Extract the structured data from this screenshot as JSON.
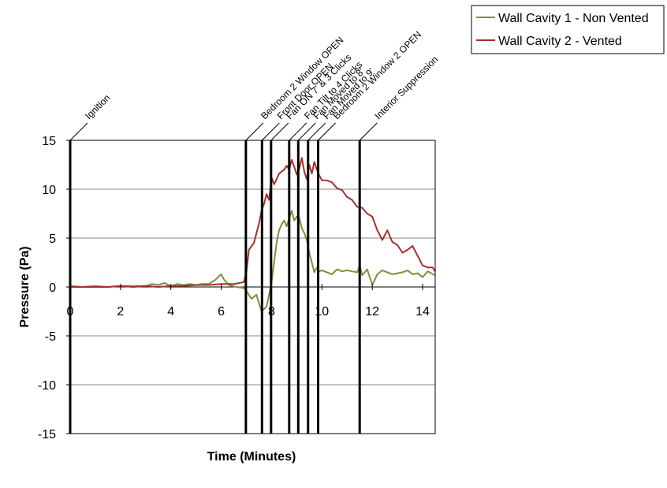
{
  "chart_data": {
    "type": "line",
    "title": "",
    "xlabel": "Time (Minutes)",
    "ylabel": "Pressure (Pa)",
    "xlim": [
      0,
      14.5
    ],
    "ylim": [
      -15,
      15
    ],
    "x_ticks": [
      0,
      2,
      4,
      6,
      8,
      10,
      12,
      14
    ],
    "y_ticks": [
      15,
      10,
      5,
      0,
      -5,
      -10,
      -15
    ],
    "grid": "horizontal",
    "legend_position": "top-right",
    "series": [
      {
        "name": "Wall Cavity 1 - Non Vented",
        "color": "#77933c",
        "x": [
          0,
          0.5,
          1,
          1.5,
          2,
          2.5,
          3,
          3.25,
          3.5,
          3.75,
          4,
          4.25,
          4.5,
          4.75,
          5,
          5.25,
          5.5,
          5.75,
          6,
          6.1,
          6.3,
          6.6,
          6.9,
          7,
          7.2,
          7.4,
          7.6,
          7.8,
          7.9,
          8.0,
          8.1,
          8.2,
          8.3,
          8.4,
          8.5,
          8.6,
          8.7,
          8.8,
          8.9,
          9.0,
          9.1,
          9.2,
          9.3,
          9.4,
          9.5,
          9.6,
          9.7,
          9.8,
          9.9,
          10.0,
          10.2,
          10.4,
          10.6,
          10.8,
          11.0,
          11.2,
          11.4,
          11.5,
          11.6,
          11.8,
          12.0,
          12.2,
          12.4,
          12.6,
          12.8,
          13.0,
          13.2,
          13.4,
          13.6,
          13.8,
          14.0,
          14.2,
          14.5
        ],
        "y": [
          0.1,
          0.0,
          0.1,
          0.0,
          0.1,
          0.1,
          0.1,
          0.3,
          0.2,
          0.4,
          0.1,
          0.3,
          0.2,
          0.3,
          0.2,
          0.3,
          0.3,
          0.7,
          1.3,
          0.8,
          0.2,
          0.0,
          -0.1,
          -0.4,
          -1.2,
          -0.8,
          -2.5,
          -2.0,
          -0.8,
          0.5,
          2.5,
          4.5,
          5.8,
          6.4,
          6.8,
          6.2,
          7.0,
          7.8,
          6.8,
          7.2,
          7.1,
          6.0,
          5.5,
          4.8,
          3.5,
          2.5,
          1.5,
          2.0,
          1.6,
          1.7,
          1.5,
          1.3,
          1.8,
          1.6,
          1.7,
          1.6,
          1.5,
          2.2,
          1.2,
          1.8,
          0.2,
          1.3,
          1.7,
          1.5,
          1.3,
          1.4,
          1.5,
          1.7,
          1.3,
          1.4,
          1.0,
          1.6,
          1.2
        ]
      },
      {
        "name": "Wall Cavity 2 - Vented",
        "color": "#a5302d",
        "x": [
          0,
          0.5,
          1,
          1.5,
          2,
          2.5,
          3,
          3.5,
          4,
          4.5,
          5,
          5.5,
          6,
          6.5,
          6.9,
          7.0,
          7.1,
          7.3,
          7.5,
          7.6,
          7.7,
          7.8,
          7.9,
          8.0,
          8.1,
          8.2,
          8.3,
          8.4,
          8.5,
          8.6,
          8.7,
          8.8,
          8.9,
          9.0,
          9.1,
          9.2,
          9.3,
          9.4,
          9.5,
          9.6,
          9.7,
          9.8,
          9.9,
          10.0,
          10.2,
          10.4,
          10.6,
          10.8,
          11.0,
          11.2,
          11.4,
          11.6,
          11.8,
          12.0,
          12.2,
          12.4,
          12.6,
          12.8,
          13.0,
          13.2,
          13.4,
          13.6,
          13.8,
          14.0,
          14.2,
          14.4,
          14.5
        ],
        "y": [
          0.0,
          0.0,
          0.0,
          0.0,
          0.1,
          0.0,
          0.1,
          0.0,
          0.1,
          0.1,
          0.2,
          0.2,
          0.3,
          0.3,
          0.5,
          1.5,
          3.8,
          4.5,
          6.5,
          7.8,
          8.5,
          9.5,
          8.9,
          11.2,
          10.5,
          11.0,
          11.6,
          11.8,
          12.0,
          12.4,
          12.0,
          13.0,
          12.3,
          11.5,
          12.1,
          13.2,
          11.8,
          11.0,
          12.5,
          11.6,
          12.8,
          12.0,
          11.4,
          10.9,
          10.9,
          10.7,
          10.1,
          9.9,
          9.2,
          8.9,
          8.2,
          8.1,
          7.5,
          7.2,
          5.8,
          4.8,
          5.8,
          4.6,
          4.3,
          3.5,
          3.8,
          4.2,
          3.2,
          2.2,
          2.0,
          2.0,
          1.6
        ]
      }
    ],
    "annotations": [
      {
        "x": 0,
        "label": "Ignition"
      },
      {
        "x": 6.98,
        "label": "Bedroom 2 Window OPEN"
      },
      {
        "x": 7.62,
        "label": "Front Door OPEN"
      },
      {
        "x": 7.98,
        "label": "Fan ON 7' & 3 Clicks"
      },
      {
        "x": 8.7,
        "label": "Fan Tilt to 4 Clicks"
      },
      {
        "x": 9.06,
        "label": "Fan Moved to 8'"
      },
      {
        "x": 9.45,
        "label": "Fan Moved to 9'"
      },
      {
        "x": 9.85,
        "label": "Bedroom 2 Window 2 OPEN"
      },
      {
        "x": 11.5,
        "label": "Interior Suppression"
      }
    ]
  }
}
